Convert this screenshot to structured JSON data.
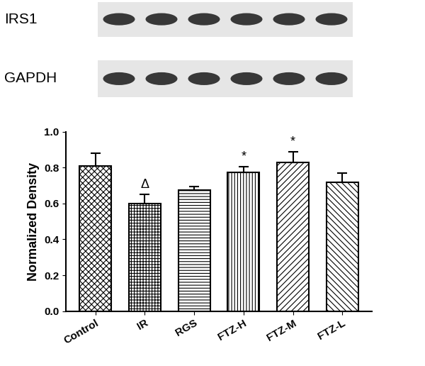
{
  "chart_data": {
    "type": "bar",
    "blot_labels": [
      "IRS1",
      "GAPDH"
    ],
    "categories": [
      "Control",
      "IR",
      "RGS",
      "FTZ-H",
      "FTZ-M",
      "FTZ-L"
    ],
    "values": [
      0.81,
      0.6,
      0.675,
      0.775,
      0.83,
      0.72
    ],
    "errors": [
      0.07,
      0.05,
      0.02,
      0.03,
      0.06,
      0.05
    ],
    "color": "#ffffff",
    "y_label": "Normalized Density",
    "annotations": [
      {
        "category": "IR",
        "text": "Δ"
      },
      {
        "category": "FTZ-H",
        "text": "*"
      },
      {
        "category": "FTZ-M",
        "text": "*"
      }
    ],
    "ylim": [
      0,
      1.0
    ],
    "yticks": [
      {
        "value": 0,
        "label": "0.0"
      },
      0.2,
      0.4,
      0.6,
      0.8,
      {
        "value": 1.0,
        "label": "1.0"
      }
    ],
    "grid": false
  }
}
